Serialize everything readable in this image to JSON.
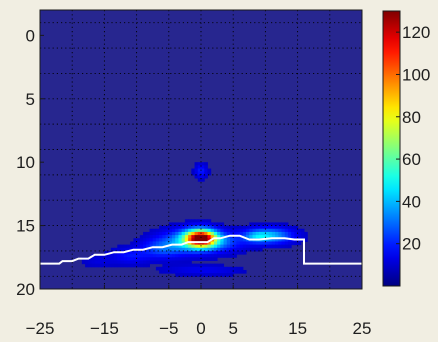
{
  "chart_data": {
    "type": "heatmap",
    "title": "",
    "xlabel": "",
    "ylabel": "",
    "xlim": [
      -25,
      25
    ],
    "ylim": [
      20,
      -2
    ],
    "x_ticks": [
      -25,
      -15,
      -5,
      0,
      5,
      15,
      25
    ],
    "x_tick_labels": [
      "−25",
      "−15",
      "−5",
      "0",
      "5",
      "15",
      "25"
    ],
    "y_ticks": [
      0,
      5,
      10,
      15,
      20
    ],
    "y_tick_labels": [
      "0",
      "5",
      "10",
      "15",
      "20"
    ],
    "grid": true,
    "colormap": "jet",
    "background_value": 8,
    "colorbar": {
      "range": [
        0,
        130
      ],
      "ticks": [
        20,
        40,
        60,
        80,
        100,
        120
      ],
      "tick_labels": [
        "20",
        "40",
        "60",
        "80",
        "100",
        "120"
      ]
    },
    "blobs": [
      {
        "x": 0,
        "y": 16.0,
        "sx": 1.6,
        "sy": 0.45,
        "value": 120
      },
      {
        "x": -1.5,
        "y": 16.2,
        "sx": 2.8,
        "sy": 0.6,
        "value": 40
      },
      {
        "x": 3.0,
        "y": 16.3,
        "sx": 2.5,
        "sy": 0.5,
        "value": 24
      },
      {
        "x": 10.5,
        "y": 15.8,
        "sx": 2.4,
        "sy": 0.4,
        "value": 42
      },
      {
        "x": 8.5,
        "y": 15.9,
        "sx": 1.2,
        "sy": 0.3,
        "value": 22
      },
      {
        "x": -6.0,
        "y": 16.8,
        "sx": 2.2,
        "sy": 0.5,
        "value": 26
      },
      {
        "x": -11.0,
        "y": 17.4,
        "sx": 2.0,
        "sy": 0.4,
        "value": 18
      },
      {
        "x": -16.0,
        "y": 17.8,
        "sx": 1.6,
        "sy": 0.3,
        "value": 12
      },
      {
        "x": 0,
        "y": 10.7,
        "sx": 0.6,
        "sy": 0.35,
        "value": 20
      },
      {
        "x": -0.5,
        "y": 18.5,
        "sx": 3.5,
        "sy": 0.25,
        "value": 14
      },
      {
        "x": 3.5,
        "y": 18.6,
        "sx": 2.5,
        "sy": 0.2,
        "value": 10
      }
    ],
    "boundary_line": {
      "color": "#ffffff",
      "x": [
        -25,
        -22,
        -21.5,
        -20,
        -19,
        -17.5,
        -16.5,
        -15,
        -13.5,
        -12,
        -10.5,
        -9,
        -7.5,
        -6,
        -4.5,
        -3,
        -2,
        1,
        2,
        3,
        4.5,
        6,
        7.5,
        9,
        11,
        13,
        14.5,
        16,
        16,
        25
      ],
      "y": [
        18.0,
        18.0,
        17.8,
        17.8,
        17.6,
        17.6,
        17.3,
        17.3,
        17.1,
        17.1,
        16.9,
        16.9,
        16.7,
        16.7,
        16.5,
        16.5,
        16.3,
        16.3,
        16.0,
        16.0,
        15.8,
        15.8,
        16.1,
        16.1,
        16.0,
        16.0,
        16.1,
        16.1,
        18.0,
        18.0
      ]
    }
  }
}
